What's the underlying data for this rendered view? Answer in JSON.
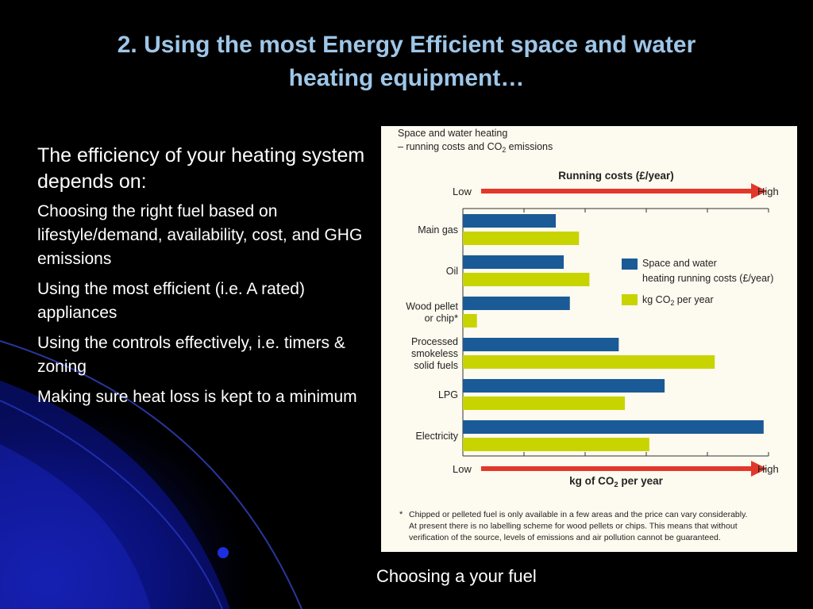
{
  "slide": {
    "title_line1": "2. Using the most Energy Efficient space and water",
    "title_line2": "heating equipment…",
    "intro": "The efficiency of your heating system depends on:",
    "bullets": [
      "Choosing the right fuel based on lifestyle/demand, availability, cost, and GHG emissions",
      "Using the most efficient (i.e. A rated) appliances",
      "Using the controls effectively, i.e. timers & zoning",
      "Making sure heat loss is kept to a minimum"
    ],
    "caption": "Choosing a your fuel"
  },
  "colors": {
    "title": "#9ec6e8",
    "running_costs": "#1a5a96",
    "co2": "#c8d400",
    "arrow": "#e2382b",
    "panel": "#fdfaef"
  },
  "chart_data": {
    "type": "bar",
    "orientation": "horizontal",
    "title_line1": "Space and water heating",
    "title_line2_prefix": "– running costs and CO",
    "title_line2_sub": "2",
    "title_line2_suffix": " emissions",
    "top_axis_label": "Running costs (£/year)",
    "bottom_axis_label_prefix": "kg of CO",
    "bottom_axis_label_sub": "2",
    "bottom_axis_label_suffix": " per year",
    "low_label": "Low",
    "high_label": "High",
    "xlim": [
      0,
      5
    ],
    "categories": [
      [
        "Main gas"
      ],
      [
        "Oil"
      ],
      [
        "Wood pellet",
        "or chip*"
      ],
      [
        "Processed",
        "smokeless",
        "solid fuels"
      ],
      [
        "LPG"
      ],
      [
        "Electricity"
      ]
    ],
    "series": [
      {
        "legend_line1": "Space and water",
        "legend_line2": "heating running costs (£/year)",
        "values": [
          1.52,
          1.65,
          1.75,
          2.55,
          3.3,
          4.92
        ]
      },
      {
        "legend_prefix": "kg CO",
        "legend_sub": "2",
        "legend_suffix": "  per year",
        "values": [
          1.9,
          2.07,
          0.23,
          4.12,
          2.65,
          3.05
        ]
      }
    ],
    "footnote_marker": "*",
    "footnote_lines": [
      "Chipped or pelleted fuel is only available in a few areas and the price can vary considerably.",
      "At present there is no labelling scheme for wood pellets or chips. This means that without",
      "verification of the source, levels of emissions and air pollution cannot be guaranteed."
    ]
  }
}
